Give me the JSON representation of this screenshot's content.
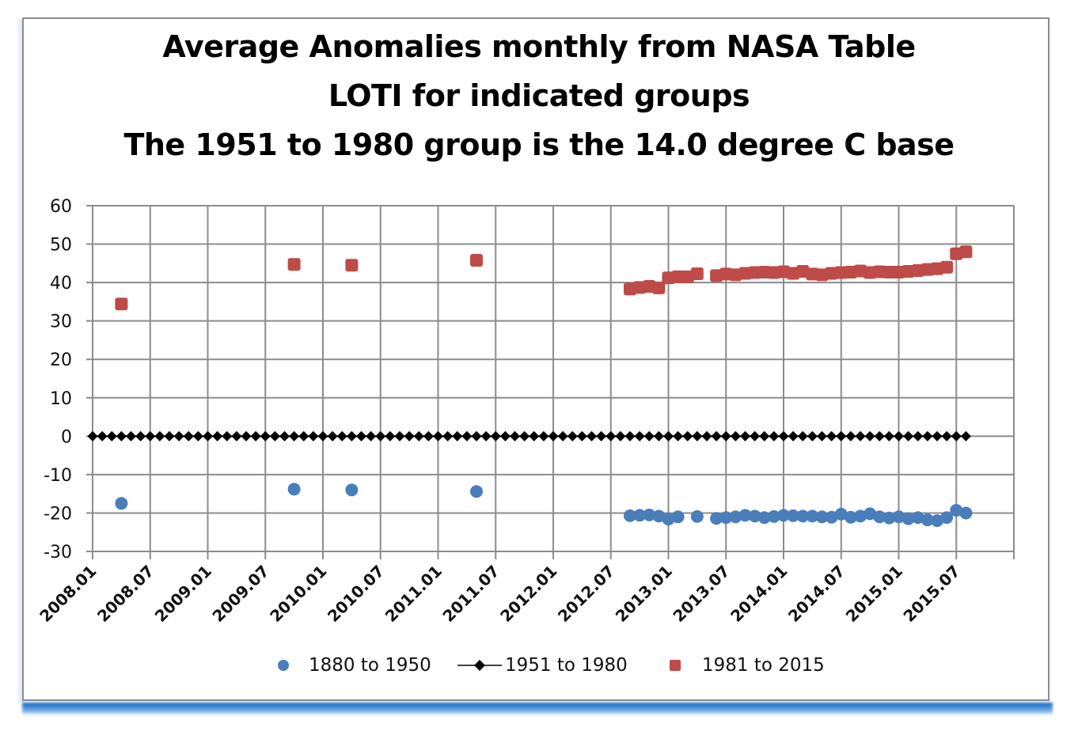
{
  "chart_data": {
    "type": "scatter",
    "title": [
      "Average Anomalies monthly from NASA Table",
      "LOTI for indicated groups",
      "The 1951 to 1980 group is the 14.0 degree C base"
    ],
    "xlabel": "",
    "ylabel": "",
    "x_unit": "month index from 2008.01",
    "xlim": [
      0,
      96
    ],
    "ylim": [
      -30,
      60
    ],
    "yticks": [
      -30,
      -20,
      -10,
      0,
      10,
      20,
      30,
      40,
      50,
      60
    ],
    "xtick_labels": [
      "2008.01",
      "2008.07",
      "2009.01",
      "2009.07",
      "2010.01",
      "2010.07",
      "2011.01",
      "2011.07",
      "2012.01",
      "2012.07",
      "2013.01",
      "2013.07",
      "2014.01",
      "2014.07",
      "2015.01",
      "2015.07"
    ],
    "xtick_step_months": 6,
    "grid": true,
    "legend_position": "bottom",
    "series": [
      {
        "name": "1880 to 1950",
        "marker": "circle",
        "line": false,
        "color": "#4a7ebb",
        "x": [
          3,
          21,
          27,
          40,
          56,
          57,
          58,
          59,
          60,
          61,
          63,
          65,
          66,
          67,
          68,
          69,
          70,
          71,
          72,
          73,
          74,
          75,
          76,
          77,
          78,
          79,
          80,
          81,
          82,
          83,
          84,
          85,
          86,
          87,
          88,
          89,
          90,
          91
        ],
        "y": [
          -17.5,
          -13.8,
          -14.0,
          -14.4,
          -20.7,
          -20.6,
          -20.5,
          -20.8,
          -21.6,
          -21.0,
          -20.9,
          -21.4,
          -21.2,
          -21.0,
          -20.6,
          -20.8,
          -21.2,
          -20.9,
          -20.6,
          -20.7,
          -20.8,
          -20.8,
          -21.0,
          -21.1,
          -20.3,
          -21.1,
          -20.8,
          -20.2,
          -21.0,
          -21.3,
          -21.0,
          -21.5,
          -21.2,
          -21.8,
          -22.0,
          -21.2,
          -19.3,
          -20.0
        ]
      },
      {
        "name": "1951 to 1980",
        "marker": "diamond",
        "line": true,
        "color": "#000000",
        "x_range": [
          0,
          91
        ],
        "y_constant": 0
      },
      {
        "name": "1981 to 2015",
        "marker": "square",
        "line": false,
        "color": "#be4b48",
        "x": [
          3,
          21,
          27,
          40,
          56,
          57,
          58,
          59,
          60,
          61,
          62,
          63,
          65,
          66,
          67,
          68,
          69,
          70,
          71,
          72,
          73,
          74,
          75,
          76,
          77,
          78,
          79,
          80,
          81,
          82,
          83,
          84,
          85,
          86,
          87,
          88,
          89,
          90,
          91
        ],
        "y": [
          34.4,
          44.7,
          44.5,
          45.8,
          38.3,
          38.7,
          39.0,
          38.6,
          41.2,
          41.5,
          41.5,
          42.3,
          41.8,
          42.2,
          42.0,
          42.4,
          42.6,
          42.7,
          42.6,
          42.8,
          42.4,
          42.9,
          42.2,
          42.0,
          42.4,
          42.6,
          42.7,
          43.0,
          42.6,
          42.8,
          42.7,
          42.7,
          42.9,
          43.1,
          43.4,
          43.6,
          44.0,
          47.5,
          48.0
        ]
      }
    ]
  }
}
